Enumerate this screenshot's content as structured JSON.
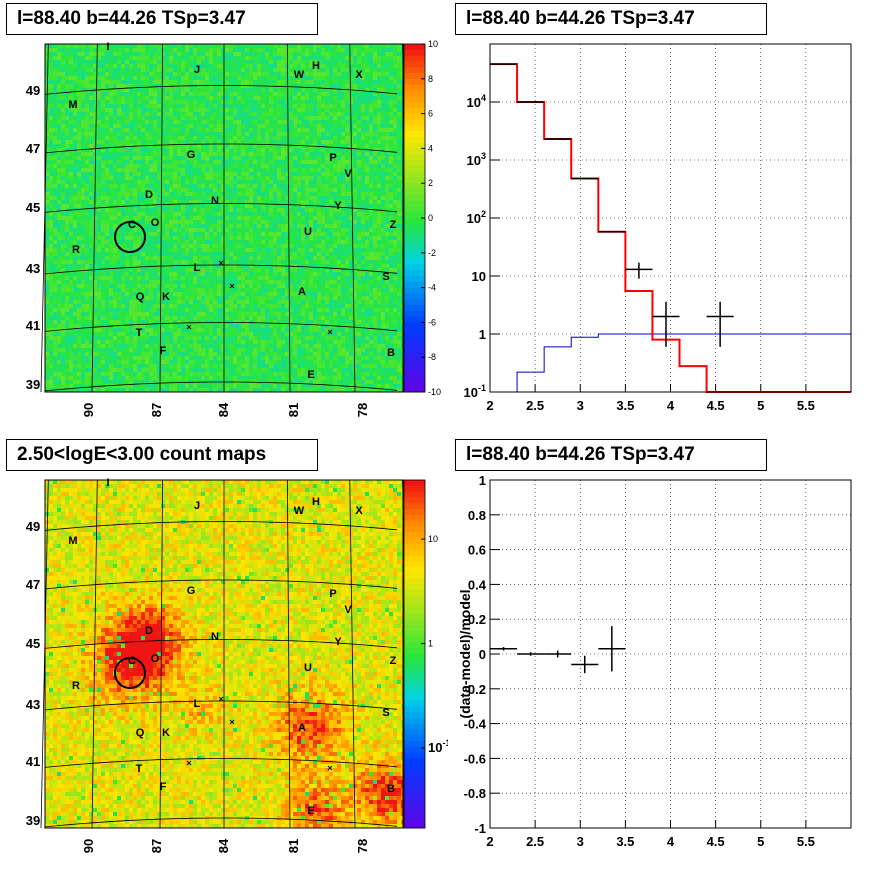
{
  "panels": {
    "top_left_title": "l=88.40 b=44.26 TSp=3.47",
    "top_right_title": "l=88.40 b=44.26 TSp=3.47",
    "bottom_left_title": "2.50<logE<3.00 count maps",
    "bottom_right_title": "l=88.40 b=44.26 TSp=3.47"
  },
  "colors": {
    "data": "#000000",
    "model": "#ff0000",
    "component": "#0000cc"
  },
  "chart_data": [
    {
      "type": "heatmap",
      "name": "residual-significance-map",
      "x_ticks": [
        "90",
        "87",
        "84",
        "81",
        "78"
      ],
      "y_ticks": [
        "39",
        "41",
        "43",
        "45",
        "47",
        "49"
      ],
      "colorbar_ticks": [
        "10",
        "8",
        "6",
        "4",
        "2",
        "0",
        "-2",
        "-4",
        "-6",
        "-8",
        "-10"
      ],
      "colorbar_range": [
        -10,
        10
      ],
      "source_labels": [
        "J",
        "W",
        "H",
        "X",
        "M",
        "G",
        "P",
        "V",
        "D",
        "N",
        "Y",
        "Z",
        "C",
        "O",
        "R",
        "U",
        "L",
        "S",
        "Q",
        "K",
        "A",
        "T",
        "F",
        "B",
        "E",
        "I"
      ]
    },
    {
      "type": "line",
      "name": "energy-spectrum",
      "xlim": [
        2,
        6
      ],
      "x_ticks": [
        "2",
        "2.5",
        "3",
        "3.5",
        "4",
        "4.5",
        "5",
        "5.5"
      ],
      "y_scale": "log",
      "ylim": [
        0.1,
        100000
      ],
      "y_ticks": [
        "10^-1",
        "1",
        "10",
        "10^2",
        "10^3",
        "10^4"
      ],
      "grid": true,
      "series": [
        {
          "role": "data",
          "points": [
            {
              "x": 2.15,
              "y": 45000,
              "xerr": 0.15,
              "yerr_lo": 0,
              "yerr_hi": 0
            },
            {
              "x": 2.45,
              "y": 10000,
              "xerr": 0.15,
              "yerr_lo": 0,
              "yerr_hi": 0
            },
            {
              "x": 2.75,
              "y": 2300,
              "xerr": 0.15,
              "yerr_lo": 0,
              "yerr_hi": 0
            },
            {
              "x": 3.05,
              "y": 480,
              "xerr": 0.15,
              "yerr_lo": 0,
              "yerr_hi": 0
            },
            {
              "x": 3.35,
              "y": 58,
              "xerr": 0.15,
              "yerr_lo": 0,
              "yerr_hi": 0
            },
            {
              "x": 3.65,
              "y": 13,
              "xerr": 0.15,
              "yerr_lo": 4,
              "yerr_hi": 4
            },
            {
              "x": 3.95,
              "y": 2,
              "xerr": 0.15,
              "yerr_lo": 1.4,
              "yerr_hi": 1.6
            },
            {
              "x": 4.55,
              "y": 2,
              "xerr": 0.15,
              "yerr_lo": 1.4,
              "yerr_hi": 1.6
            }
          ]
        },
        {
          "role": "model",
          "bin_edges": [
            2.0,
            2.3,
            2.6,
            2.9,
            3.2,
            3.5,
            3.8,
            4.1,
            4.4,
            6.0
          ],
          "values": [
            45000,
            10000,
            2300,
            480,
            58,
            5.5,
            0.8,
            0.28,
            0.1
          ]
        },
        {
          "role": "component",
          "bin_edges": [
            2.0,
            2.3,
            2.6,
            2.9,
            3.2,
            3.5,
            3.8,
            4.1,
            4.4,
            6.0
          ],
          "values": [
            0.05,
            0.22,
            0.6,
            0.88,
            1.0,
            1.0,
            1.0,
            1.0,
            1.0
          ]
        }
      ]
    },
    {
      "type": "heatmap",
      "name": "count-map",
      "x_ticks": [
        "90",
        "87",
        "84",
        "81",
        "78"
      ],
      "y_ticks": [
        "39",
        "41",
        "43",
        "45",
        "47",
        "49"
      ],
      "colorbar_ticks": [
        "10",
        "1",
        "10^-1"
      ],
      "colorbar_scale": "log",
      "source_labels": [
        "J",
        "W",
        "H",
        "X",
        "M",
        "G",
        "P",
        "V",
        "D",
        "N",
        "Y",
        "Z",
        "C",
        "O",
        "R",
        "U",
        "L",
        "S",
        "Q",
        "K",
        "A",
        "T",
        "F",
        "B",
        "E",
        "I"
      ]
    },
    {
      "type": "scatter",
      "name": "residual-ratio",
      "ylabel": "(data-model)/model",
      "xlim": [
        2,
        6
      ],
      "x_ticks": [
        "2",
        "2.5",
        "3",
        "3.5",
        "4",
        "4.5",
        "5",
        "5.5"
      ],
      "ylim": [
        -1,
        1
      ],
      "y_ticks": [
        "-1",
        "-0.8",
        "-0.6",
        "-0.4",
        "-0.2",
        "0",
        "0.2",
        "0.4",
        "0.6",
        "0.8",
        "1"
      ],
      "grid": true,
      "points": [
        {
          "x": 2.15,
          "y": 0.03,
          "xerr": 0.15,
          "yerr": 0.01
        },
        {
          "x": 2.45,
          "y": 0.0,
          "xerr": 0.15,
          "yerr": 0.01
        },
        {
          "x": 2.75,
          "y": 0.0,
          "xerr": 0.15,
          "yerr": 0.02
        },
        {
          "x": 3.05,
          "y": -0.06,
          "xerr": 0.15,
          "yerr": 0.05
        },
        {
          "x": 3.35,
          "y": 0.03,
          "xerr": 0.15,
          "yerr": 0.13
        }
      ]
    }
  ]
}
